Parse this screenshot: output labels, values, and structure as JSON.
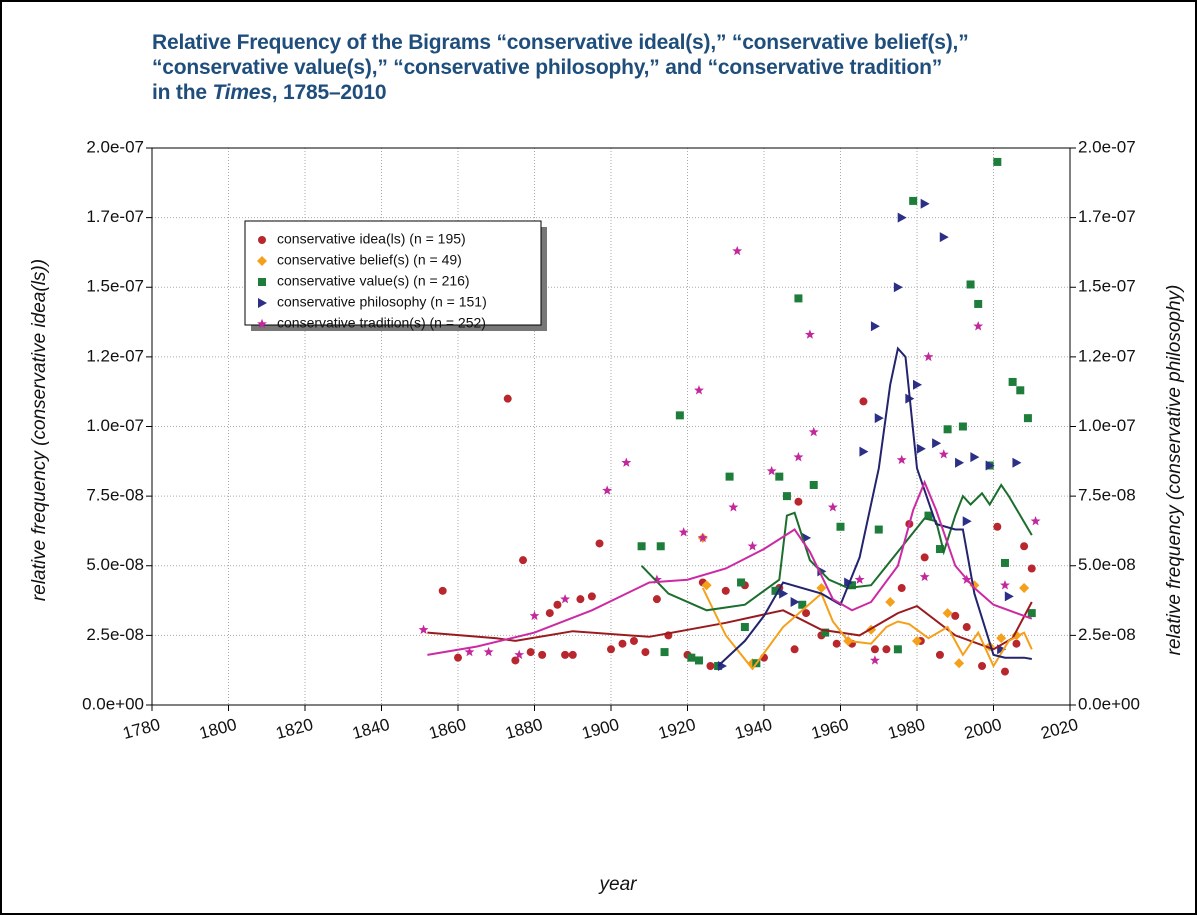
{
  "chart_data": {
    "type": "scatter",
    "title": {
      "lines": [
        "Relative Frequency of the Bigrams “conservative ideal(s),” “conservative belief(s),”",
        "“conservative value(s),” “conservative philosophy,” and “conservative tradition”"
      ],
      "last": [
        "in the",
        "Times",
        ", 1785–2010"
      ]
    },
    "xlabel": "year",
    "ylabel": "relative frequency (conservative idea(ls))",
    "y2label": "relative frequency (conservative philosophy)",
    "xlim": [
      1780,
      2020
    ],
    "xticks": [
      1780,
      1800,
      1820,
      1840,
      1860,
      1880,
      1900,
      1920,
      1940,
      1960,
      1980,
      2000,
      2020
    ],
    "ylim": [
      0,
      2e-07
    ],
    "yticks": [
      {
        "value": 0,
        "label": "0.0e+00"
      },
      {
        "value": 2.5e-08,
        "label": "2.5e-08"
      },
      {
        "value": 5e-08,
        "label": "5.0e-08"
      },
      {
        "value": 7.5e-08,
        "label": "7.5e-08"
      },
      {
        "value": 1e-07,
        "label": "1.0e-07"
      },
      {
        "value": 1.25e-07,
        "label": "1.2e-07"
      },
      {
        "value": 1.5e-07,
        "label": "1.5e-07"
      },
      {
        "value": 1.75e-07,
        "label": "1.7e-07"
      },
      {
        "value": 2e-07,
        "label": "2.0e-07"
      }
    ],
    "y2lim": [
      0,
      2e-07
    ],
    "y2ticks": [
      {
        "value": 0,
        "label": "0.0e+00"
      },
      {
        "value": 2.5e-08,
        "label": "2.5e-08"
      },
      {
        "value": 5e-08,
        "label": "5.0e-08"
      },
      {
        "value": 7.5e-08,
        "label": "7.5e-08"
      },
      {
        "value": 1e-07,
        "label": "1.0e-07"
      },
      {
        "value": 1.25e-07,
        "label": "1.2e-07"
      },
      {
        "value": 1.5e-07,
        "label": "1.5e-07"
      },
      {
        "value": 1.75e-07,
        "label": "1.7e-07"
      },
      {
        "value": 2e-07,
        "label": "2.0e-07"
      }
    ],
    "grid": true,
    "legend": "upper left",
    "series": [
      {
        "name": "conservative idea(ls) (n = 195)",
        "color": "#b8272d",
        "line_color": "#9a1b1f",
        "marker": "circle",
        "x": [
          1856,
          1860,
          1873,
          1875,
          1877,
          1879,
          1882,
          1884,
          1886,
          1888,
          1890,
          1892,
          1895,
          1897,
          1900,
          1903,
          1906,
          1909,
          1912,
          1915,
          1920,
          1924,
          1926,
          1930,
          1935,
          1940,
          1944,
          1948,
          1949,
          1951,
          1955,
          1959,
          1963,
          1966,
          1969,
          1972,
          1976,
          1978,
          1981,
          1982,
          1986,
          1990,
          1993,
          1997,
          2001,
          2003,
          2006,
          2008,
          2010
        ],
        "values": [
          4.1e-08,
          1.7e-08,
          1.1e-07,
          1.6e-08,
          5.2e-08,
          1.9e-08,
          1.8e-08,
          3.3e-08,
          3.6e-08,
          1.8e-08,
          1.8e-08,
          3.8e-08,
          3.9e-08,
          5.8e-08,
          2e-08,
          2.2e-08,
          2.3e-08,
          1.9e-08,
          3.8e-08,
          2.5e-08,
          1.8e-08,
          4.4e-08,
          1.4e-08,
          4.1e-08,
          4.3e-08,
          1.7e-08,
          4.2e-08,
          2e-08,
          7.3e-08,
          3.3e-08,
          2.5e-08,
          2.2e-08,
          2.2e-08,
          1.09e-07,
          2e-08,
          2e-08,
          4.2e-08,
          6.5e-08,
          2.3e-08,
          5.3e-08,
          1.8e-08,
          3.2e-08,
          2.8e-08,
          1.4e-08,
          6.4e-08,
          1.2e-08,
          2.2e-08,
          5.7e-08,
          4.9e-08
        ],
        "smooth": {
          "x": [
            1852,
            1870,
            1875,
            1890,
            1910,
            1930,
            1945,
            1955,
            1965,
            1975,
            1980,
            1990,
            2000,
            2005,
            2010
          ],
          "values": [
            2.6e-08,
            2.4e-08,
            2.3e-08,
            2.65e-08,
            2.45e-08,
            2.95e-08,
            3.4e-08,
            2.7e-08,
            2.5e-08,
            3.3e-08,
            3.55e-08,
            2.5e-08,
            2e-08,
            2.4e-08,
            3.7e-08
          ]
        }
      },
      {
        "name": "conservative belief(s) (n = 49)",
        "color": "#f5a01a",
        "line_color": "#f5a01a",
        "marker": "diamond",
        "x": [
          1924,
          1925,
          1937,
          1955,
          1962,
          1968,
          1973,
          1980,
          1988,
          1991,
          1995,
          1999,
          2002,
          2006,
          2008
        ],
        "values": [
          6e-08,
          4.3e-08,
          1.5e-08,
          4.2e-08,
          2.3e-08,
          2.7e-08,
          3.7e-08,
          2.3e-08,
          3.3e-08,
          1.5e-08,
          4.3e-08,
          2.1e-08,
          2.4e-08,
          2.5e-08,
          4.2e-08
        ],
        "smooth": {
          "x": [
            1924,
            1930,
            1937,
            1945,
            1955,
            1958,
            1962,
            1968,
            1972,
            1975,
            1978,
            1983,
            1988,
            1992,
            1996,
            2000,
            2004,
            2008,
            2010
          ],
          "values": [
            4.2e-08,
            2.5e-08,
            1.3e-08,
            2.8e-08,
            4e-08,
            3e-08,
            2.3e-08,
            2.2e-08,
            2.8e-08,
            3e-08,
            2.9e-08,
            2.4e-08,
            2.8e-08,
            1.8e-08,
            2.6e-08,
            1.4e-08,
            2.3e-08,
            2.6e-08,
            2e-08
          ]
        }
      },
      {
        "name": "conservative value(s) (n = 216)",
        "color": "#1f7d3b",
        "line_color": "#1b6e2c",
        "marker": "square",
        "x": [
          1908,
          1913,
          1914,
          1918,
          1921,
          1923,
          1928,
          1931,
          1934,
          1935,
          1938,
          1943,
          1944,
          1946,
          1949,
          1950,
          1953,
          1956,
          1960,
          1963,
          1970,
          1975,
          1979,
          1983,
          1986,
          1988,
          1992,
          1994,
          1996,
          1999,
          2001,
          2003,
          2005,
          2007,
          2009,
          2010
        ],
        "values": [
          5.7e-08,
          5.7e-08,
          1.9e-08,
          1.04e-07,
          1.7e-08,
          1.6e-08,
          1.4e-08,
          8.2e-08,
          4.4e-08,
          2.8e-08,
          1.5e-08,
          4.1e-08,
          8.2e-08,
          7.5e-08,
          1.46e-07,
          3.6e-08,
          7.9e-08,
          2.6e-08,
          6.4e-08,
          4.3e-08,
          6.3e-08,
          2e-08,
          1.81e-07,
          6.8e-08,
          5.6e-08,
          9.9e-08,
          1e-07,
          1.51e-07,
          1.44e-07,
          8.6e-08,
          1.95e-07,
          5.1e-08,
          1.16e-07,
          1.13e-07,
          1.03e-07,
          3.3e-08
        ],
        "smooth": {
          "x": [
            1908,
            1915,
            1925,
            1935,
            1944,
            1946,
            1948,
            1952,
            1957,
            1962,
            1968,
            1975,
            1982,
            1985,
            1987,
            1990,
            1992,
            1994,
            1997,
            1999,
            2002,
            2004,
            2010
          ],
          "values": [
            5e-08,
            4e-08,
            3.4e-08,
            3.6e-08,
            4.5e-08,
            6.8e-08,
            6.9e-08,
            5.2e-08,
            4.5e-08,
            4.2e-08,
            4.3e-08,
            5.5e-08,
            6.7e-08,
            6.6e-08,
            5.5e-08,
            6.8e-08,
            7.5e-08,
            7.2e-08,
            7.6e-08,
            7.2e-08,
            7.9e-08,
            7.5e-08,
            6.1e-08
          ]
        }
      },
      {
        "name": "conservative philosophy (n = 151)",
        "color": "#2c2f86",
        "line_color": "#23236e",
        "marker": "triangle",
        "axis": "y2",
        "x": [
          1929,
          1945,
          1948,
          1951,
          1955,
          1962,
          1966,
          1969,
          1970,
          1975,
          1976,
          1978,
          1980,
          1981,
          1982,
          1985,
          1987,
          1991,
          1993,
          1995,
          1999,
          2002,
          2004,
          2006
        ],
        "values": [
          1.4e-08,
          4e-08,
          3.7e-08,
          6e-08,
          4.8e-08,
          4.4e-08,
          9.1e-08,
          1.36e-07,
          1.03e-07,
          1.5e-07,
          1.75e-07,
          1.1e-07,
          1.15e-07,
          9.2e-08,
          1.8e-07,
          9.4e-08,
          1.68e-07,
          8.7e-08,
          6.6e-08,
          8.9e-08,
          8.6e-08,
          2e-08,
          3.9e-08,
          8.7e-08
        ],
        "smooth": {
          "x": [
            1928,
            1935,
            1940,
            1945,
            1955,
            1960,
            1965,
            1970,
            1973,
            1975,
            1977,
            1980,
            1985,
            1990,
            1992,
            1995,
            2000,
            2003,
            2008,
            2010
          ],
          "values": [
            1.4e-08,
            2.3e-08,
            3.2e-08,
            4.4e-08,
            4e-08,
            3.6e-08,
            5.3e-08,
            8.5e-08,
            1.15e-07,
            1.28e-07,
            1.25e-07,
            8.5e-08,
            6.5e-08,
            6.3e-08,
            6.3e-08,
            4e-08,
            1.8e-08,
            1.7e-08,
            1.7e-08,
            1.65e-08
          ]
        }
      },
      {
        "name": "conservative tradition(s) (n = 252)",
        "color": "#c2279b",
        "line_color": "#cc2aa3",
        "marker": "star",
        "x": [
          1851,
          1863,
          1868,
          1876,
          1880,
          1888,
          1899,
          1904,
          1912,
          1919,
          1923,
          1924,
          1932,
          1933,
          1937,
          1942,
          1949,
          1952,
          1953,
          1958,
          1965,
          1969,
          1976,
          1982,
          1983,
          1987,
          1993,
          1996,
          2003,
          2011
        ],
        "values": [
          2.7e-08,
          1.9e-08,
          1.9e-08,
          1.8e-08,
          3.2e-08,
          3.8e-08,
          7.7e-08,
          8.7e-08,
          4.5e-08,
          6.2e-08,
          1.13e-07,
          6e-08,
          7.1e-08,
          1.63e-07,
          5.7e-08,
          8.4e-08,
          8.9e-08,
          1.33e-07,
          9.8e-08,
          7.1e-08,
          4.5e-08,
          1.6e-08,
          8.8e-08,
          4.6e-08,
          1.25e-07,
          9e-08,
          4.5e-08,
          1.36e-07,
          4.3e-08,
          6.6e-08
        ],
        "smooth": {
          "x": [
            1852,
            1865,
            1880,
            1895,
            1910,
            1920,
            1930,
            1940,
            1948,
            1952,
            1958,
            1963,
            1968,
            1975,
            1979,
            1982,
            1985,
            1990,
            1995,
            2000,
            2010
          ],
          "values": [
            1.8e-08,
            2.1e-08,
            2.6e-08,
            3.4e-08,
            4.4e-08,
            4.5e-08,
            4.9e-08,
            5.6e-08,
            6.3e-08,
            5.5e-08,
            3.8e-08,
            3.4e-08,
            3.7e-08,
            5e-08,
            7e-08,
            8e-08,
            7e-08,
            5e-08,
            4.2e-08,
            3.6e-08,
            3.1e-08
          ]
        }
      }
    ]
  }
}
